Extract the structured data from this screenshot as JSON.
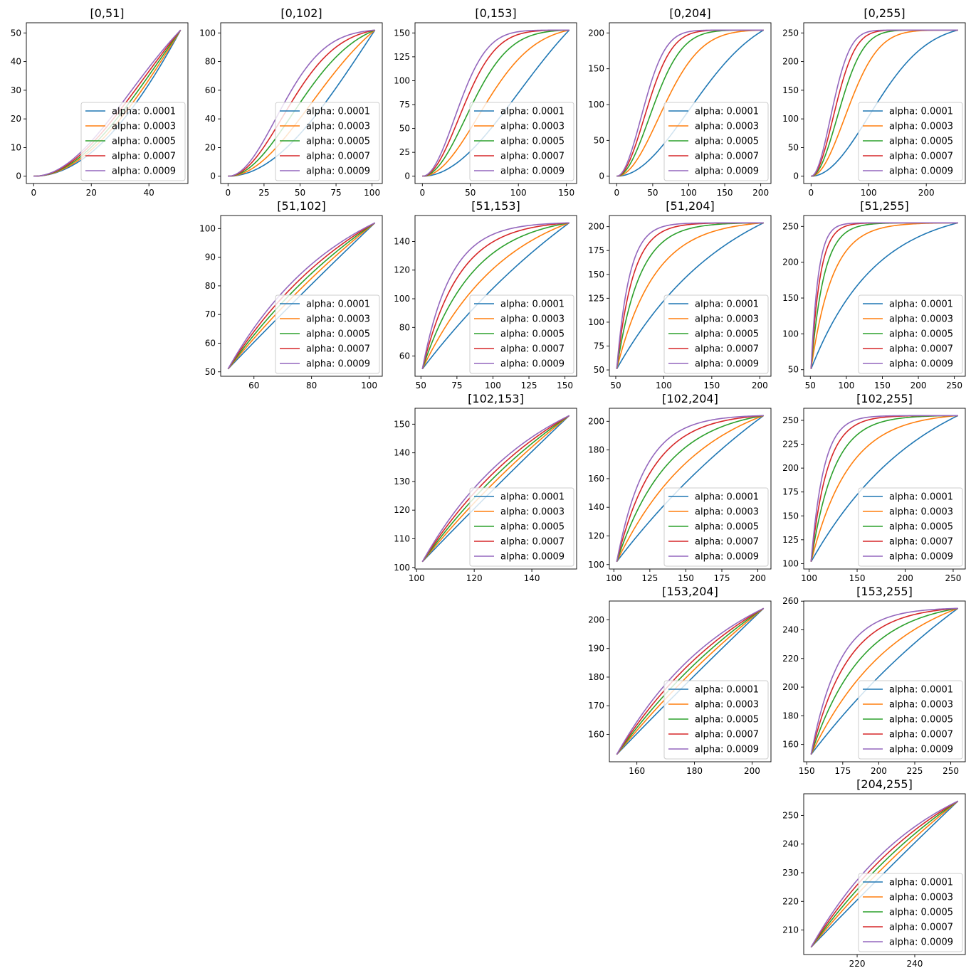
{
  "figure": {
    "grid": false,
    "legend_placement": "lower right",
    "curve_shape_note": "sigmoid-like ease curves from x=lower to x=upper, steepness increasing with alpha"
  },
  "series_styles": [
    {
      "name": "alpha: 0.0001",
      "alpha": 0.0001,
      "color": "#1f77b4"
    },
    {
      "name": "alpha: 0.0003",
      "alpha": 0.0003,
      "color": "#ff7f0e"
    },
    {
      "name": "alpha: 0.0005",
      "alpha": 0.0005,
      "color": "#2ca02c"
    },
    {
      "name": "alpha: 0.0007",
      "alpha": 0.0007,
      "color": "#d62728"
    },
    {
      "name": "alpha: 0.0009",
      "alpha": 0.0009,
      "color": "#9467bd"
    }
  ],
  "chart_data": [
    {
      "type": "line",
      "title": "[0,51]",
      "row": 0,
      "col": 0,
      "range": [
        0,
        51
      ],
      "xlim": [
        -2.55,
        53.55
      ],
      "ylim": [
        -2.55,
        53.55
      ],
      "xticks": [
        0,
        20,
        40
      ],
      "yticks": [
        0,
        10,
        20,
        30,
        40,
        50
      ],
      "legend": [
        "alpha: 0.0001",
        "alpha: 0.0003",
        "alpha: 0.0005",
        "alpha: 0.0007",
        "alpha: 0.0009"
      ]
    },
    {
      "type": "line",
      "title": "[0,102]",
      "row": 0,
      "col": 1,
      "range": [
        0,
        102
      ],
      "xlim": [
        -5.1,
        107.1
      ],
      "ylim": [
        -5.1,
        107.1
      ],
      "xticks": [
        0,
        25,
        50,
        75,
        100
      ],
      "yticks": [
        0,
        20,
        40,
        60,
        80,
        100
      ],
      "legend": [
        "alpha: 0.0001",
        "alpha: 0.0003",
        "alpha: 0.0005",
        "alpha: 0.0007",
        "alpha: 0.0009"
      ]
    },
    {
      "type": "line",
      "title": "[0,153]",
      "row": 0,
      "col": 2,
      "range": [
        0,
        153
      ],
      "xlim": [
        -7.65,
        160.65
      ],
      "ylim": [
        -7.65,
        160.65
      ],
      "xticks": [
        0,
        50,
        100,
        150
      ],
      "yticks": [
        0,
        25,
        50,
        75,
        100,
        125,
        150
      ],
      "legend": [
        "alpha: 0.0001",
        "alpha: 0.0003",
        "alpha: 0.0005",
        "alpha: 0.0007",
        "alpha: 0.0009"
      ]
    },
    {
      "type": "line",
      "title": "[0,204]",
      "row": 0,
      "col": 3,
      "range": [
        0,
        204
      ],
      "xlim": [
        -10.2,
        214.2
      ],
      "ylim": [
        -10.2,
        214.2
      ],
      "xticks": [
        0,
        50,
        100,
        150,
        200
      ],
      "yticks": [
        0,
        50,
        100,
        150,
        200
      ],
      "legend": [
        "alpha: 0.0001",
        "alpha: 0.0003",
        "alpha: 0.0005",
        "alpha: 0.0007",
        "alpha: 0.0009"
      ]
    },
    {
      "type": "line",
      "title": "[0,255]",
      "row": 0,
      "col": 4,
      "range": [
        0,
        255
      ],
      "xlim": [
        -12.75,
        267.75
      ],
      "ylim": [
        -12.75,
        267.75
      ],
      "xticks": [
        0,
        100,
        200
      ],
      "yticks": [
        0,
        50,
        100,
        150,
        200,
        250
      ],
      "legend": [
        "alpha: 0.0001",
        "alpha: 0.0003",
        "alpha: 0.0005",
        "alpha: 0.0007",
        "alpha: 0.0009"
      ]
    },
    {
      "type": "line",
      "title": "[51,102]",
      "row": 1,
      "col": 1,
      "range": [
        51,
        102
      ],
      "xlim": [
        48.45,
        104.55
      ],
      "ylim": [
        48.45,
        104.55
      ],
      "xticks": [
        60,
        80,
        100
      ],
      "yticks": [
        50,
        60,
        70,
        80,
        90,
        100
      ],
      "legend": [
        "alpha: 0.0001",
        "alpha: 0.0003",
        "alpha: 0.0005",
        "alpha: 0.0007",
        "alpha: 0.0009"
      ]
    },
    {
      "type": "line",
      "title": "[51,153]",
      "row": 1,
      "col": 2,
      "range": [
        51,
        153
      ],
      "xlim": [
        45.9,
        158.1
      ],
      "ylim": [
        45.9,
        158.1
      ],
      "xticks": [
        50,
        75,
        100,
        125,
        150
      ],
      "yticks": [
        60,
        80,
        100,
        120,
        140
      ],
      "legend": [
        "alpha: 0.0001",
        "alpha: 0.0003",
        "alpha: 0.0005",
        "alpha: 0.0007",
        "alpha: 0.0009"
      ]
    },
    {
      "type": "line",
      "title": "[51,204]",
      "row": 1,
      "col": 3,
      "range": [
        51,
        204
      ],
      "xlim": [
        43.35,
        211.65
      ],
      "ylim": [
        43.35,
        211.65
      ],
      "xticks": [
        50,
        100,
        150,
        200
      ],
      "yticks": [
        50,
        75,
        100,
        125,
        150,
        175,
        200
      ],
      "legend": [
        "alpha: 0.0001",
        "alpha: 0.0003",
        "alpha: 0.0005",
        "alpha: 0.0007",
        "alpha: 0.0009"
      ]
    },
    {
      "type": "line",
      "title": "[51,255]",
      "row": 1,
      "col": 4,
      "range": [
        51,
        255
      ],
      "xlim": [
        40.8,
        265.2
      ],
      "ylim": [
        40.8,
        265.2
      ],
      "xticks": [
        50,
        100,
        150,
        200,
        250
      ],
      "yticks": [
        50,
        100,
        150,
        200,
        250
      ],
      "legend": [
        "alpha: 0.0001",
        "alpha: 0.0003",
        "alpha: 0.0005",
        "alpha: 0.0007",
        "alpha: 0.0009"
      ]
    },
    {
      "type": "line",
      "title": "[102,153]",
      "row": 2,
      "col": 2,
      "range": [
        102,
        153
      ],
      "xlim": [
        99.45,
        155.55
      ],
      "ylim": [
        99.45,
        155.55
      ],
      "xticks": [
        100,
        120,
        140
      ],
      "yticks": [
        100,
        110,
        120,
        130,
        140,
        150
      ],
      "legend": [
        "alpha: 0.0001",
        "alpha: 0.0003",
        "alpha: 0.0005",
        "alpha: 0.0007",
        "alpha: 0.0009"
      ]
    },
    {
      "type": "line",
      "title": "[102,204]",
      "row": 2,
      "col": 3,
      "range": [
        102,
        204
      ],
      "xlim": [
        96.9,
        209.1
      ],
      "ylim": [
        96.9,
        209.1
      ],
      "xticks": [
        100,
        125,
        150,
        175,
        200
      ],
      "yticks": [
        100,
        120,
        140,
        160,
        180,
        200
      ],
      "legend": [
        "alpha: 0.0001",
        "alpha: 0.0003",
        "alpha: 0.0005",
        "alpha: 0.0007",
        "alpha: 0.0009"
      ]
    },
    {
      "type": "line",
      "title": "[102,255]",
      "row": 2,
      "col": 4,
      "range": [
        102,
        255
      ],
      "xlim": [
        94.35,
        262.65
      ],
      "ylim": [
        94.35,
        262.65
      ],
      "xticks": [
        100,
        150,
        200,
        250
      ],
      "yticks": [
        100,
        125,
        150,
        175,
        200,
        225,
        250
      ],
      "legend": [
        "alpha: 0.0001",
        "alpha: 0.0003",
        "alpha: 0.0005",
        "alpha: 0.0007",
        "alpha: 0.0009"
      ]
    },
    {
      "type": "line",
      "title": "[153,204]",
      "row": 3,
      "col": 3,
      "range": [
        153,
        204
      ],
      "xlim": [
        150.45,
        206.55
      ],
      "ylim": [
        150.45,
        206.55
      ],
      "xticks": [
        160,
        180,
        200
      ],
      "yticks": [
        160,
        170,
        180,
        190,
        200
      ],
      "legend": [
        "alpha: 0.0001",
        "alpha: 0.0003",
        "alpha: 0.0005",
        "alpha: 0.0007",
        "alpha: 0.0009"
      ]
    },
    {
      "type": "line",
      "title": "[153,255]",
      "row": 3,
      "col": 4,
      "range": [
        153,
        255
      ],
      "xlim": [
        147.9,
        260.1
      ],
      "ylim": [
        147.9,
        260.1
      ],
      "xticks": [
        150,
        175,
        200,
        225,
        250
      ],
      "yticks": [
        160,
        180,
        200,
        220,
        240,
        260
      ],
      "legend": [
        "alpha: 0.0001",
        "alpha: 0.0003",
        "alpha: 0.0005",
        "alpha: 0.0007",
        "alpha: 0.0009"
      ]
    },
    {
      "type": "line",
      "title": "[204,255]",
      "row": 4,
      "col": 4,
      "range": [
        204,
        255
      ],
      "xlim": [
        201.45,
        257.55
      ],
      "ylim": [
        201.45,
        257.55
      ],
      "xticks": [
        220,
        240
      ],
      "yticks": [
        210,
        220,
        230,
        240,
        250
      ],
      "legend": [
        "alpha: 0.0001",
        "alpha: 0.0003",
        "alpha: 0.0005",
        "alpha: 0.0007",
        "alpha: 0.0009"
      ]
    }
  ]
}
